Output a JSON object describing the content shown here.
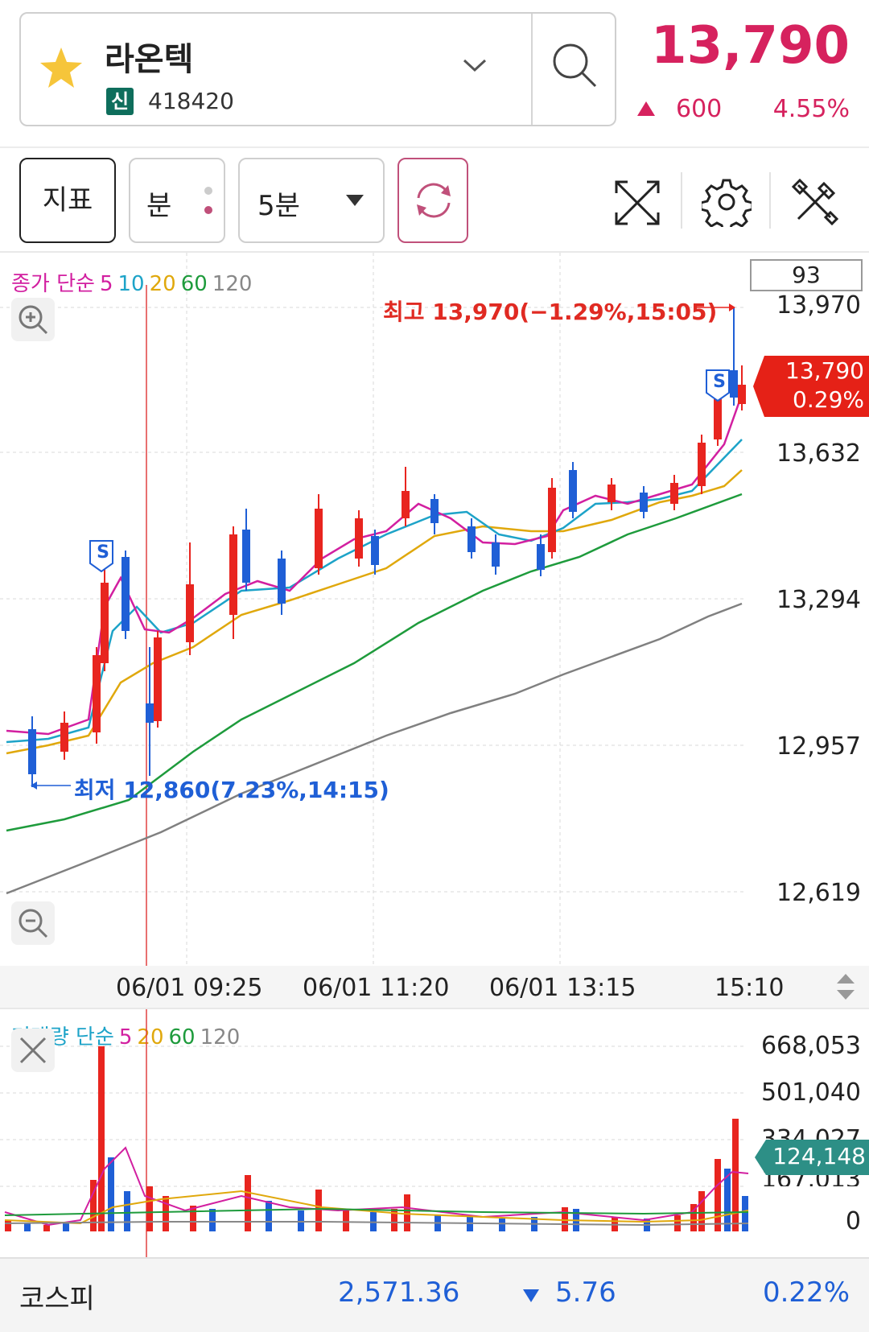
{
  "stock": {
    "name": "라온텍",
    "badge": "신",
    "code": "418420",
    "price": "13,790",
    "change": "600",
    "change_pct": "4.55%"
  },
  "toolbar": {
    "indicator_label": "지표",
    "minute_label": "분",
    "interval_label": "5분"
  },
  "price_chart": {
    "legend_title": "종가 단순",
    "legend_periods": [
      "5",
      "10",
      "20",
      "60",
      "120"
    ],
    "count_box": "93",
    "y_labels": [
      "13,970",
      "13,632",
      "13,294",
      "12,957",
      "12,619"
    ],
    "current_price": "13,790",
    "current_pct": "0.29%",
    "high_note": "최고 13,970(−1.29%,15:05)",
    "low_note": "최저 12,860(7.23%,14:15)",
    "signal_marker": "S",
    "time_labels": [
      "06/01 09:25",
      "06/01 11:20",
      "06/01 13:15",
      "15:10"
    ]
  },
  "volume_chart": {
    "legend_title": "거래량 단순",
    "legend_periods": [
      "5",
      "20",
      "60",
      "120"
    ],
    "y_labels": [
      "668,053",
      "501,040",
      "334,027",
      "167,013",
      "0"
    ],
    "current_volume": "124,148"
  },
  "footer": {
    "index_name": "코스피",
    "index_value": "2,571.36",
    "index_change": "5.76",
    "index_pct": "0.22%"
  },
  "colors": {
    "up": "#e8251f",
    "down": "#1f5fd6",
    "accent": "#d6225e",
    "ma5": "#d21fa0",
    "ma10": "#1da3c8",
    "ma20": "#e0a80c",
    "ma60": "#1e9b3c",
    "ma120": "#777777"
  }
}
